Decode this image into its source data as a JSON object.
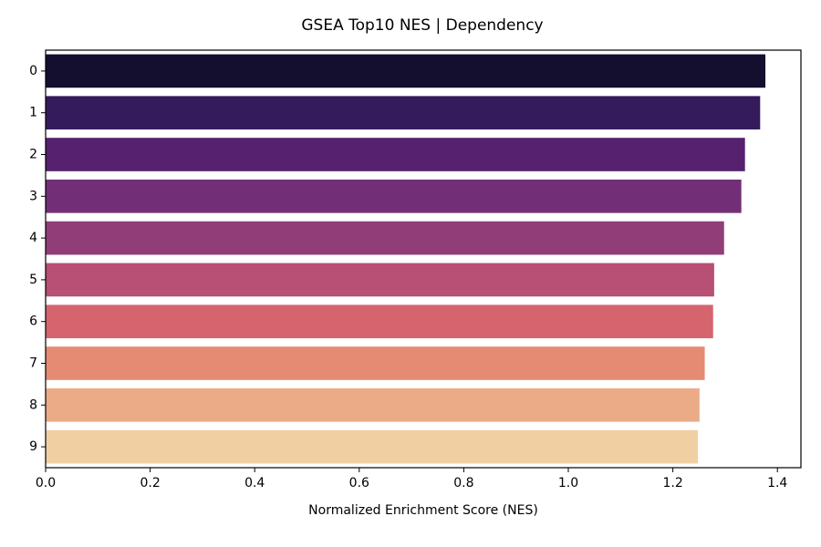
{
  "chart_data": {
    "type": "bar",
    "orientation": "horizontal",
    "title": "GSEA Top10 NES | Dependency",
    "xlabel": "Normalized Enrichment Score (NES)",
    "ylabel": "",
    "categories": [
      "0",
      "1",
      "2",
      "3",
      "4",
      "5",
      "6",
      "7",
      "8",
      "9"
    ],
    "values": [
      1.377,
      1.367,
      1.338,
      1.331,
      1.298,
      1.279,
      1.277,
      1.261,
      1.251,
      1.248
    ],
    "bar_colors": [
      "#140f2f",
      "#341c5c",
      "#56216f",
      "#722f77",
      "#913e78",
      "#b84f74",
      "#d6646f",
      "#e68b73",
      "#ebab86",
      "#f0d0a2"
    ],
    "xlim": [
      0,
      1.445
    ],
    "xticks": [
      "0.0",
      "0.2",
      "0.4",
      "0.6",
      "0.8",
      "1.0",
      "1.2",
      "1.4"
    ],
    "grid": false,
    "legend": "none"
  }
}
